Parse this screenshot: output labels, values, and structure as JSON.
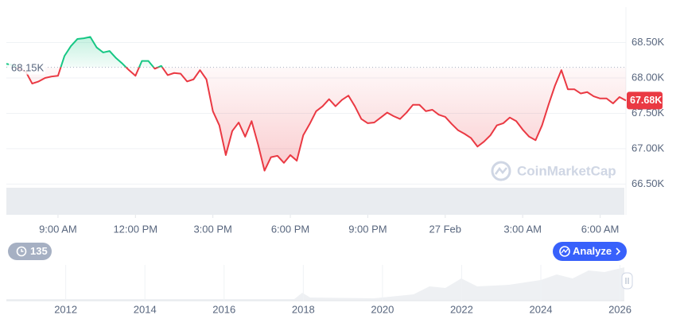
{
  "chart_data": {
    "type": "line",
    "x": [
      7,
      7.25,
      7.5,
      7.75,
      8,
      8.25,
      8.5,
      8.75,
      9,
      9.25,
      9.5,
      9.75,
      10,
      10.25,
      10.5,
      10.75,
      11,
      11.25,
      11.5,
      11.75,
      12,
      12.25,
      12.5,
      12.75,
      13,
      13.25,
      13.5,
      13.75,
      14,
      14.25,
      14.5,
      14.75,
      15,
      15.25,
      15.5,
      15.75,
      16,
      16.25,
      16.5,
      16.75,
      17,
      17.25,
      17.5,
      17.75,
      18,
      18.25,
      18.5,
      18.75,
      19,
      19.25,
      19.5,
      19.75,
      20,
      20.25,
      20.5,
      20.75,
      21,
      21.25,
      21.5,
      21.75,
      22,
      22.25,
      22.5,
      22.75,
      23,
      23.25,
      23.5,
      23.75,
      24,
      24.25,
      24.5,
      24.75,
      25,
      25.25,
      25.5,
      25.75,
      26,
      26.25,
      26.5,
      26.75,
      27,
      27.25,
      27.5,
      27.75,
      28,
      28.25,
      28.5,
      28.75,
      29,
      29.25,
      29.5,
      29.75,
      30,
      30.25,
      30.5,
      30.75,
      31
    ],
    "values": [
      68200,
      68180,
      68130,
      68090,
      67920,
      67950,
      68000,
      68020,
      68030,
      68310,
      68450,
      68550,
      68560,
      68580,
      68430,
      68360,
      68380,
      68280,
      68200,
      68110,
      68030,
      68240,
      68240,
      68130,
      68170,
      68040,
      68070,
      68060,
      67950,
      67980,
      68110,
      67980,
      67530,
      67330,
      66910,
      67250,
      67370,
      67170,
      67390,
      67060,
      66690,
      66880,
      66900,
      66800,
      66910,
      66830,
      67190,
      67350,
      67530,
      67600,
      67700,
      67600,
      67690,
      67750,
      67600,
      67420,
      67360,
      67370,
      67440,
      67510,
      67460,
      67420,
      67510,
      67620,
      67620,
      67530,
      67550,
      67480,
      67450,
      67350,
      67260,
      67210,
      67150,
      67030,
      67100,
      67190,
      67330,
      67360,
      67440,
      67390,
      67270,
      67170,
      67120,
      67330,
      67620,
      67890,
      68110,
      67840,
      67840,
      67780,
      67800,
      67740,
      67710,
      67710,
      67640,
      67730,
      67680
    ],
    "colors": {
      "up": "#16c784",
      "down": "#ea3943"
    },
    "xlim": [
      7,
      31
    ],
    "xticks": [
      {
        "value": 9,
        "label": "9:00 AM"
      },
      {
        "value": 12,
        "label": "12:00 PM"
      },
      {
        "value": 15,
        "label": "3:00 PM"
      },
      {
        "value": 18,
        "label": "6:00 PM"
      },
      {
        "value": 21,
        "label": "9:00 PM"
      },
      {
        "value": 24,
        "label": "27 Feb"
      },
      {
        "value": 27,
        "label": "3:00 AM"
      },
      {
        "value": 30,
        "label": "6:00 AM"
      }
    ],
    "ylim": [
      66100,
      69000
    ],
    "yticks": [
      {
        "value": 66500,
        "label": "66.50K"
      },
      {
        "value": 67000,
        "label": "67.00K"
      },
      {
        "value": 67500,
        "label": "67.50K"
      },
      {
        "value": 68000,
        "label": "68.00K"
      },
      {
        "value": 68500,
        "label": "68.50K"
      }
    ],
    "grid": true,
    "baseline": {
      "value": 68150,
      "label": "68.15K"
    },
    "current_price": {
      "value": 67680,
      "label": "67.68K"
    },
    "overview": {
      "xlim": [
        2010.5,
        2026.15
      ],
      "xticks": [
        2012,
        2014,
        2016,
        2018,
        2020,
        2022,
        2024,
        2026
      ]
    }
  },
  "ui": {
    "badge": "135",
    "button": "Analyze",
    "watermark": "CoinMarketCap"
  }
}
